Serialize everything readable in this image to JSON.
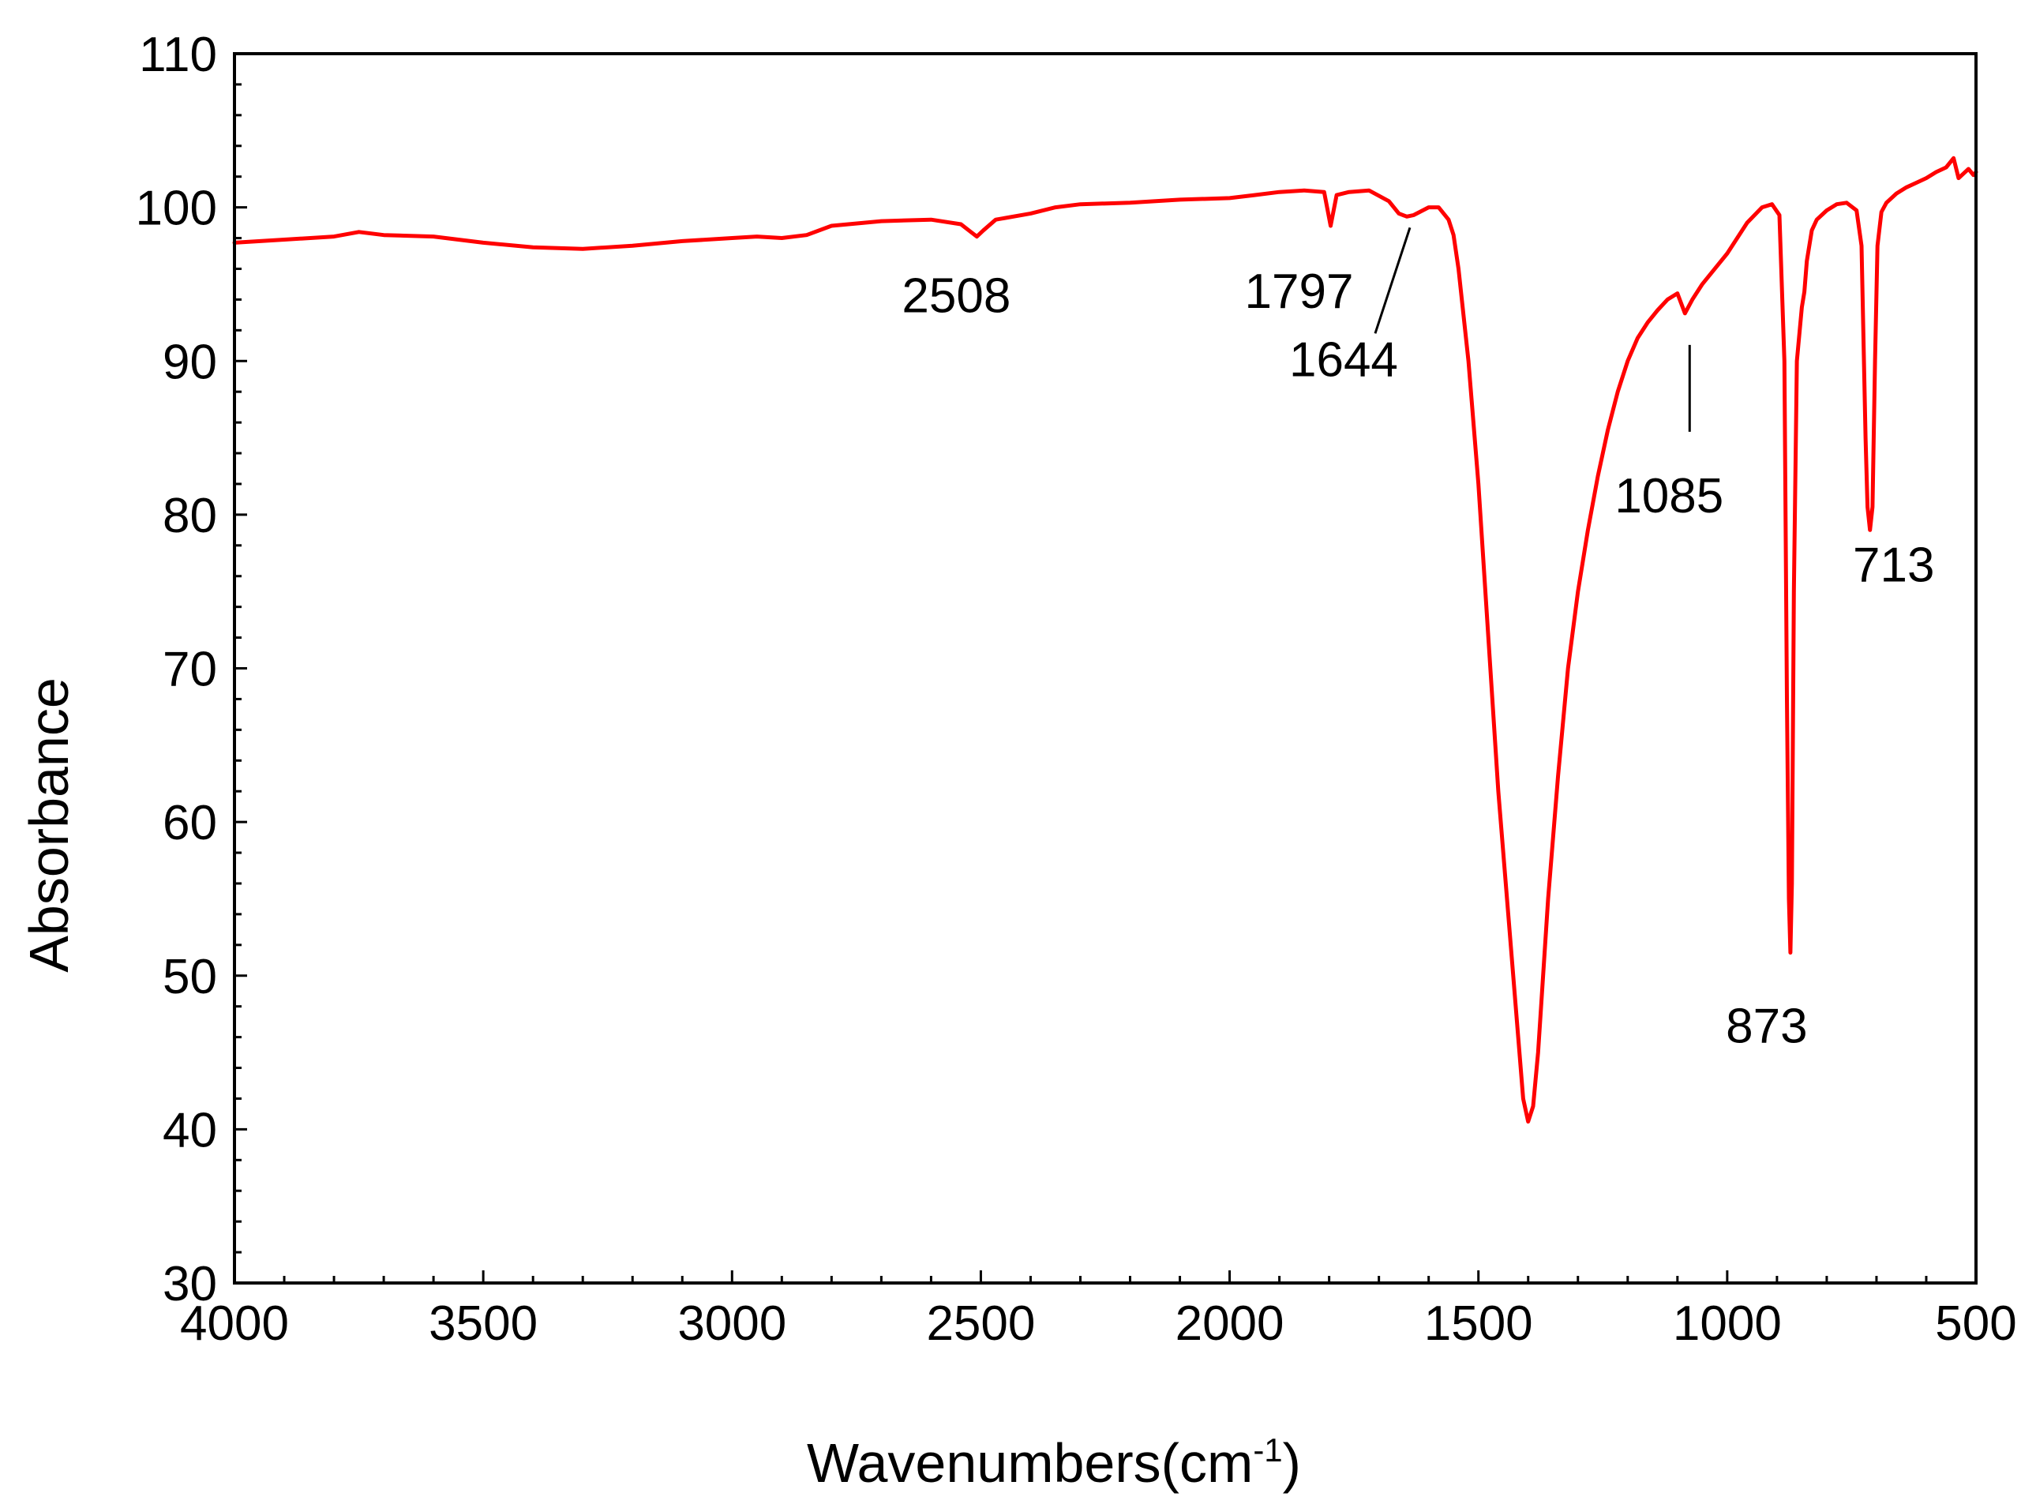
{
  "chart_data": {
    "type": "line",
    "title": "",
    "xlabel": "Wavenumbers(cm",
    "xlabel_superscript": "-1",
    "xlabel_close": ")",
    "ylabel": "Absorbance",
    "xlim": [
      4000,
      500
    ],
    "ylim": [
      30,
      110
    ],
    "x_reversed": true,
    "x_ticks": [
      4000,
      3500,
      3000,
      2500,
      2000,
      1500,
      1000,
      500
    ],
    "x_tick_labels": [
      "4000",
      "3500",
      "3000",
      "2500",
      "2000",
      "1500",
      "1000",
      "500"
    ],
    "x_minor_step": 100,
    "y_ticks": [
      30,
      40,
      50,
      60,
      70,
      80,
      90,
      100,
      110
    ],
    "y_tick_labels": [
      "30",
      "40",
      "50",
      "60",
      "70",
      "80",
      "90",
      "100",
      "110"
    ],
    "y_minor_step": 2,
    "grid": false,
    "series": [
      {
        "name": "spectrum",
        "color": "#ff0000",
        "x": [
          4000,
          3900,
          3800,
          3750,
          3700,
          3600,
          3500,
          3400,
          3300,
          3200,
          3100,
          3000,
          2950,
          2900,
          2850,
          2800,
          2700,
          2600,
          2540,
          2520,
          2508,
          2495,
          2470,
          2400,
          2350,
          2300,
          2200,
          2100,
          2000,
          1950,
          1900,
          1850,
          1810,
          1797,
          1785,
          1760,
          1720,
          1680,
          1660,
          1644,
          1630,
          1600,
          1580,
          1560,
          1550,
          1540,
          1520,
          1500,
          1480,
          1460,
          1440,
          1420,
          1410,
          1400,
          1390,
          1380,
          1360,
          1340,
          1320,
          1300,
          1280,
          1260,
          1240,
          1220,
          1200,
          1180,
          1160,
          1140,
          1120,
          1100,
          1085,
          1070,
          1050,
          1000,
          960,
          930,
          910,
          895,
          885,
          880,
          876,
          873,
          870,
          866,
          860,
          850,
          845,
          840,
          830,
          820,
          800,
          780,
          760,
          740,
          730,
          722,
          718,
          713,
          708,
          703,
          698,
          690,
          680,
          660,
          640,
          620,
          600,
          580,
          560,
          545,
          535,
          525,
          515,
          505,
          500
        ],
        "y": [
          97.7,
          97.9,
          98.1,
          98.4,
          98.2,
          98.1,
          97.7,
          97.4,
          97.3,
          97.5,
          97.8,
          98.0,
          98.1,
          98.0,
          98.2,
          98.8,
          99.1,
          99.2,
          98.9,
          98.4,
          98.1,
          98.5,
          99.2,
          99.6,
          100.0,
          100.2,
          100.3,
          100.5,
          100.6,
          100.8,
          101.0,
          101.1,
          101.0,
          98.8,
          100.8,
          101.0,
          101.1,
          100.4,
          99.6,
          99.4,
          99.5,
          100.0,
          100.0,
          99.2,
          98.2,
          96.0,
          90.0,
          82.0,
          72.0,
          62.0,
          54.0,
          46.0,
          42.0,
          40.5,
          41.5,
          45.0,
          55.0,
          63.0,
          70.0,
          75.0,
          79.0,
          82.5,
          85.5,
          88.0,
          90.0,
          91.5,
          92.5,
          93.3,
          94.0,
          94.4,
          93.1,
          94.0,
          95.0,
          97.0,
          99.0,
          100.0,
          100.2,
          99.5,
          90.0,
          68.0,
          55.0,
          51.5,
          56.0,
          75.0,
          90.0,
          93.5,
          94.5,
          96.5,
          98.5,
          99.2,
          99.8,
          100.2,
          100.3,
          99.8,
          97.5,
          85.0,
          80.5,
          79.0,
          80.5,
          90.0,
          97.5,
          99.7,
          100.3,
          100.9,
          101.3,
          101.6,
          101.9,
          102.3,
          102.6,
          103.2,
          101.9,
          102.2,
          102.5,
          102.1,
          102.3
        ]
      }
    ],
    "annotations": [
      {
        "text": "2508",
        "x": 2508,
        "y": 98.1,
        "leader": false
      },
      {
        "text": "1797",
        "x": 1797,
        "y": 98.8,
        "leader": false
      },
      {
        "text": "1644",
        "x": 1644,
        "y": 99.4,
        "leader": true
      },
      {
        "text": "1085",
        "x": 1085,
        "y": 93.1,
        "leader": true
      },
      {
        "text": "873",
        "x": 873,
        "y": 51.5,
        "leader": false
      },
      {
        "text": "713",
        "x": 713,
        "y": 79.0,
        "leader": false
      }
    ]
  }
}
